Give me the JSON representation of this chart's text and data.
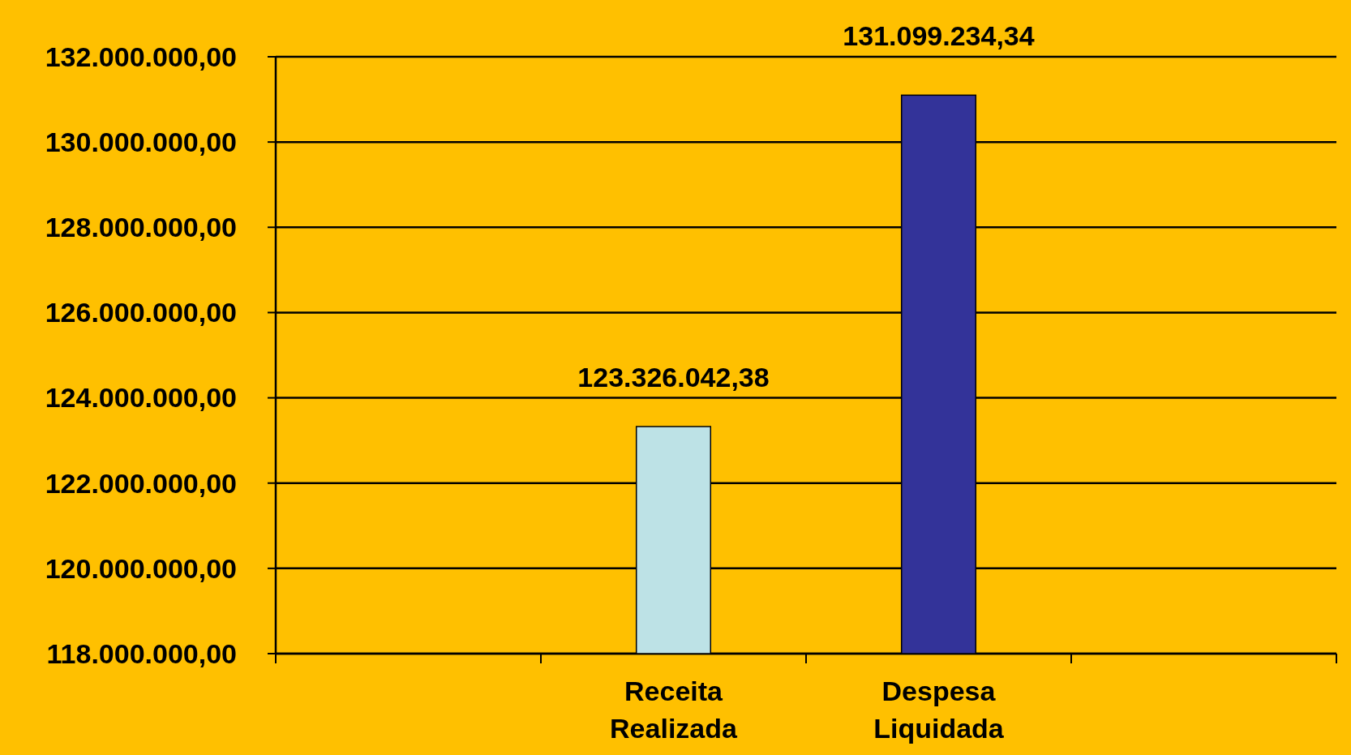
{
  "chart_data": {
    "type": "bar",
    "categories": [
      null,
      "Receita Realizada",
      "Despesa Liquidada",
      null
    ],
    "values": [
      null,
      123326042.38,
      131099234.34,
      null
    ],
    "colors": [
      null,
      "#bde2e6",
      "#333399",
      null
    ],
    "value_labels": [
      null,
      "123.326.042,38",
      "131.099.234,34",
      null
    ],
    "ylim": [
      118000000,
      132000000
    ],
    "yticks": [
      {
        "value": 118000000,
        "label": "118.000.000,00"
      },
      {
        "value": 120000000,
        "label": "120.000.000,00"
      },
      {
        "value": 122000000,
        "label": "122.000.000,00"
      },
      {
        "value": 124000000,
        "label": "124.000.000,00"
      },
      {
        "value": 126000000,
        "label": "126.000.000,00"
      },
      {
        "value": 128000000,
        "label": "128.000.000,00"
      },
      {
        "value": 130000000,
        "label": "130.000.000,00"
      },
      {
        "value": 132000000,
        "label": "132.000.000,00"
      }
    ],
    "grid": "y"
  }
}
